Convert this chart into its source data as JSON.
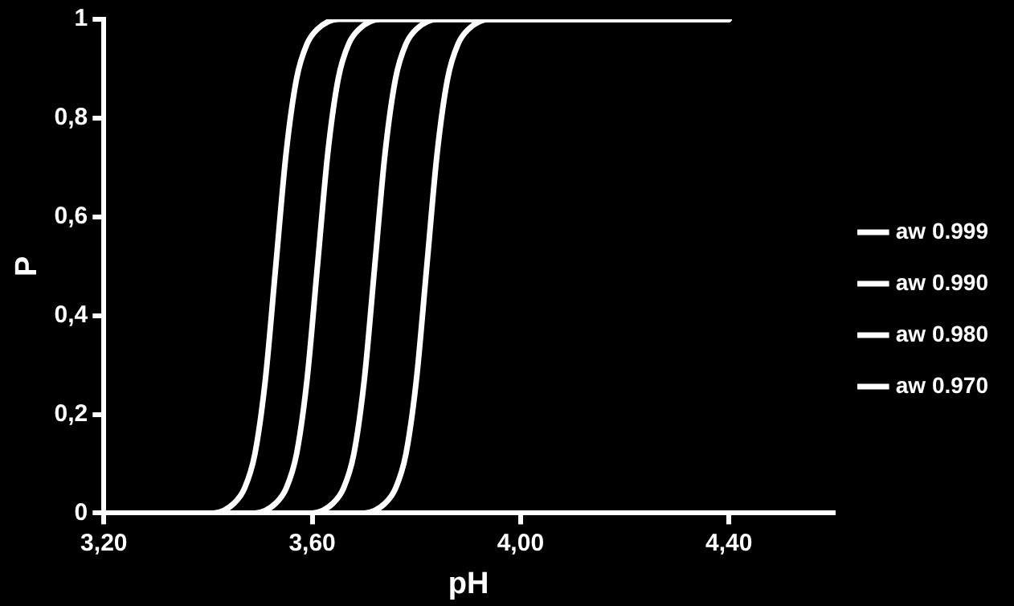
{
  "chart_data": {
    "type": "line",
    "xlabel": "pH",
    "ylabel": "P",
    "xlim": [
      3.2,
      4.6
    ],
    "ylim": [
      0,
      1
    ],
    "xticks": [
      {
        "value": 3.2,
        "label": "3,20"
      },
      {
        "value": 3.6,
        "label": "3,60"
      },
      {
        "value": 4.0,
        "label": "4,00"
      },
      {
        "value": 4.4,
        "label": "4,40"
      }
    ],
    "yticks": [
      0,
      {
        "value": 0.2,
        "label": "0,2"
      },
      {
        "value": 0.4,
        "label": "0,4"
      },
      {
        "value": 0.6,
        "label": "0,6"
      },
      {
        "value": 0.8,
        "label": "0,8"
      },
      1
    ],
    "grid": false,
    "legend": "right",
    "marker": "none",
    "line_style": "solid",
    "series": [
      {
        "name": "aw 0.999",
        "color": "#ffffff",
        "x": [
          3.33,
          3.41,
          3.45,
          3.47,
          3.49,
          3.51,
          3.53,
          3.55,
          3.57,
          3.59,
          3.61,
          3.65,
          4.4
        ],
        "values": [
          0,
          0,
          0.02,
          0.05,
          0.12,
          0.27,
          0.5,
          0.73,
          0.88,
          0.95,
          0.98,
          1,
          1
        ]
      },
      {
        "name": "aw 0.990",
        "color": "#ffffff",
        "x": [
          3.41,
          3.49,
          3.53,
          3.55,
          3.57,
          3.59,
          3.61,
          3.63,
          3.65,
          3.67,
          3.69,
          3.73,
          4.4
        ],
        "values": [
          0,
          0,
          0.02,
          0.05,
          0.12,
          0.27,
          0.5,
          0.73,
          0.88,
          0.95,
          0.98,
          1,
          1
        ]
      },
      {
        "name": "aw 0.980",
        "color": "#ffffff",
        "x": [
          3.52,
          3.6,
          3.64,
          3.66,
          3.68,
          3.7,
          3.72,
          3.74,
          3.76,
          3.78,
          3.8,
          3.84,
          4.4
        ],
        "values": [
          0,
          0,
          0.02,
          0.05,
          0.12,
          0.27,
          0.5,
          0.73,
          0.88,
          0.95,
          0.98,
          1,
          1
        ]
      },
      {
        "name": "aw 0.970",
        "color": "#ffffff",
        "x": [
          3.62,
          3.7,
          3.74,
          3.76,
          3.78,
          3.8,
          3.82,
          3.84,
          3.86,
          3.88,
          3.9,
          3.94,
          4.4
        ],
        "values": [
          0,
          0,
          0.02,
          0.05,
          0.12,
          0.27,
          0.5,
          0.73,
          0.88,
          0.95,
          0.98,
          1,
          1
        ]
      }
    ]
  }
}
